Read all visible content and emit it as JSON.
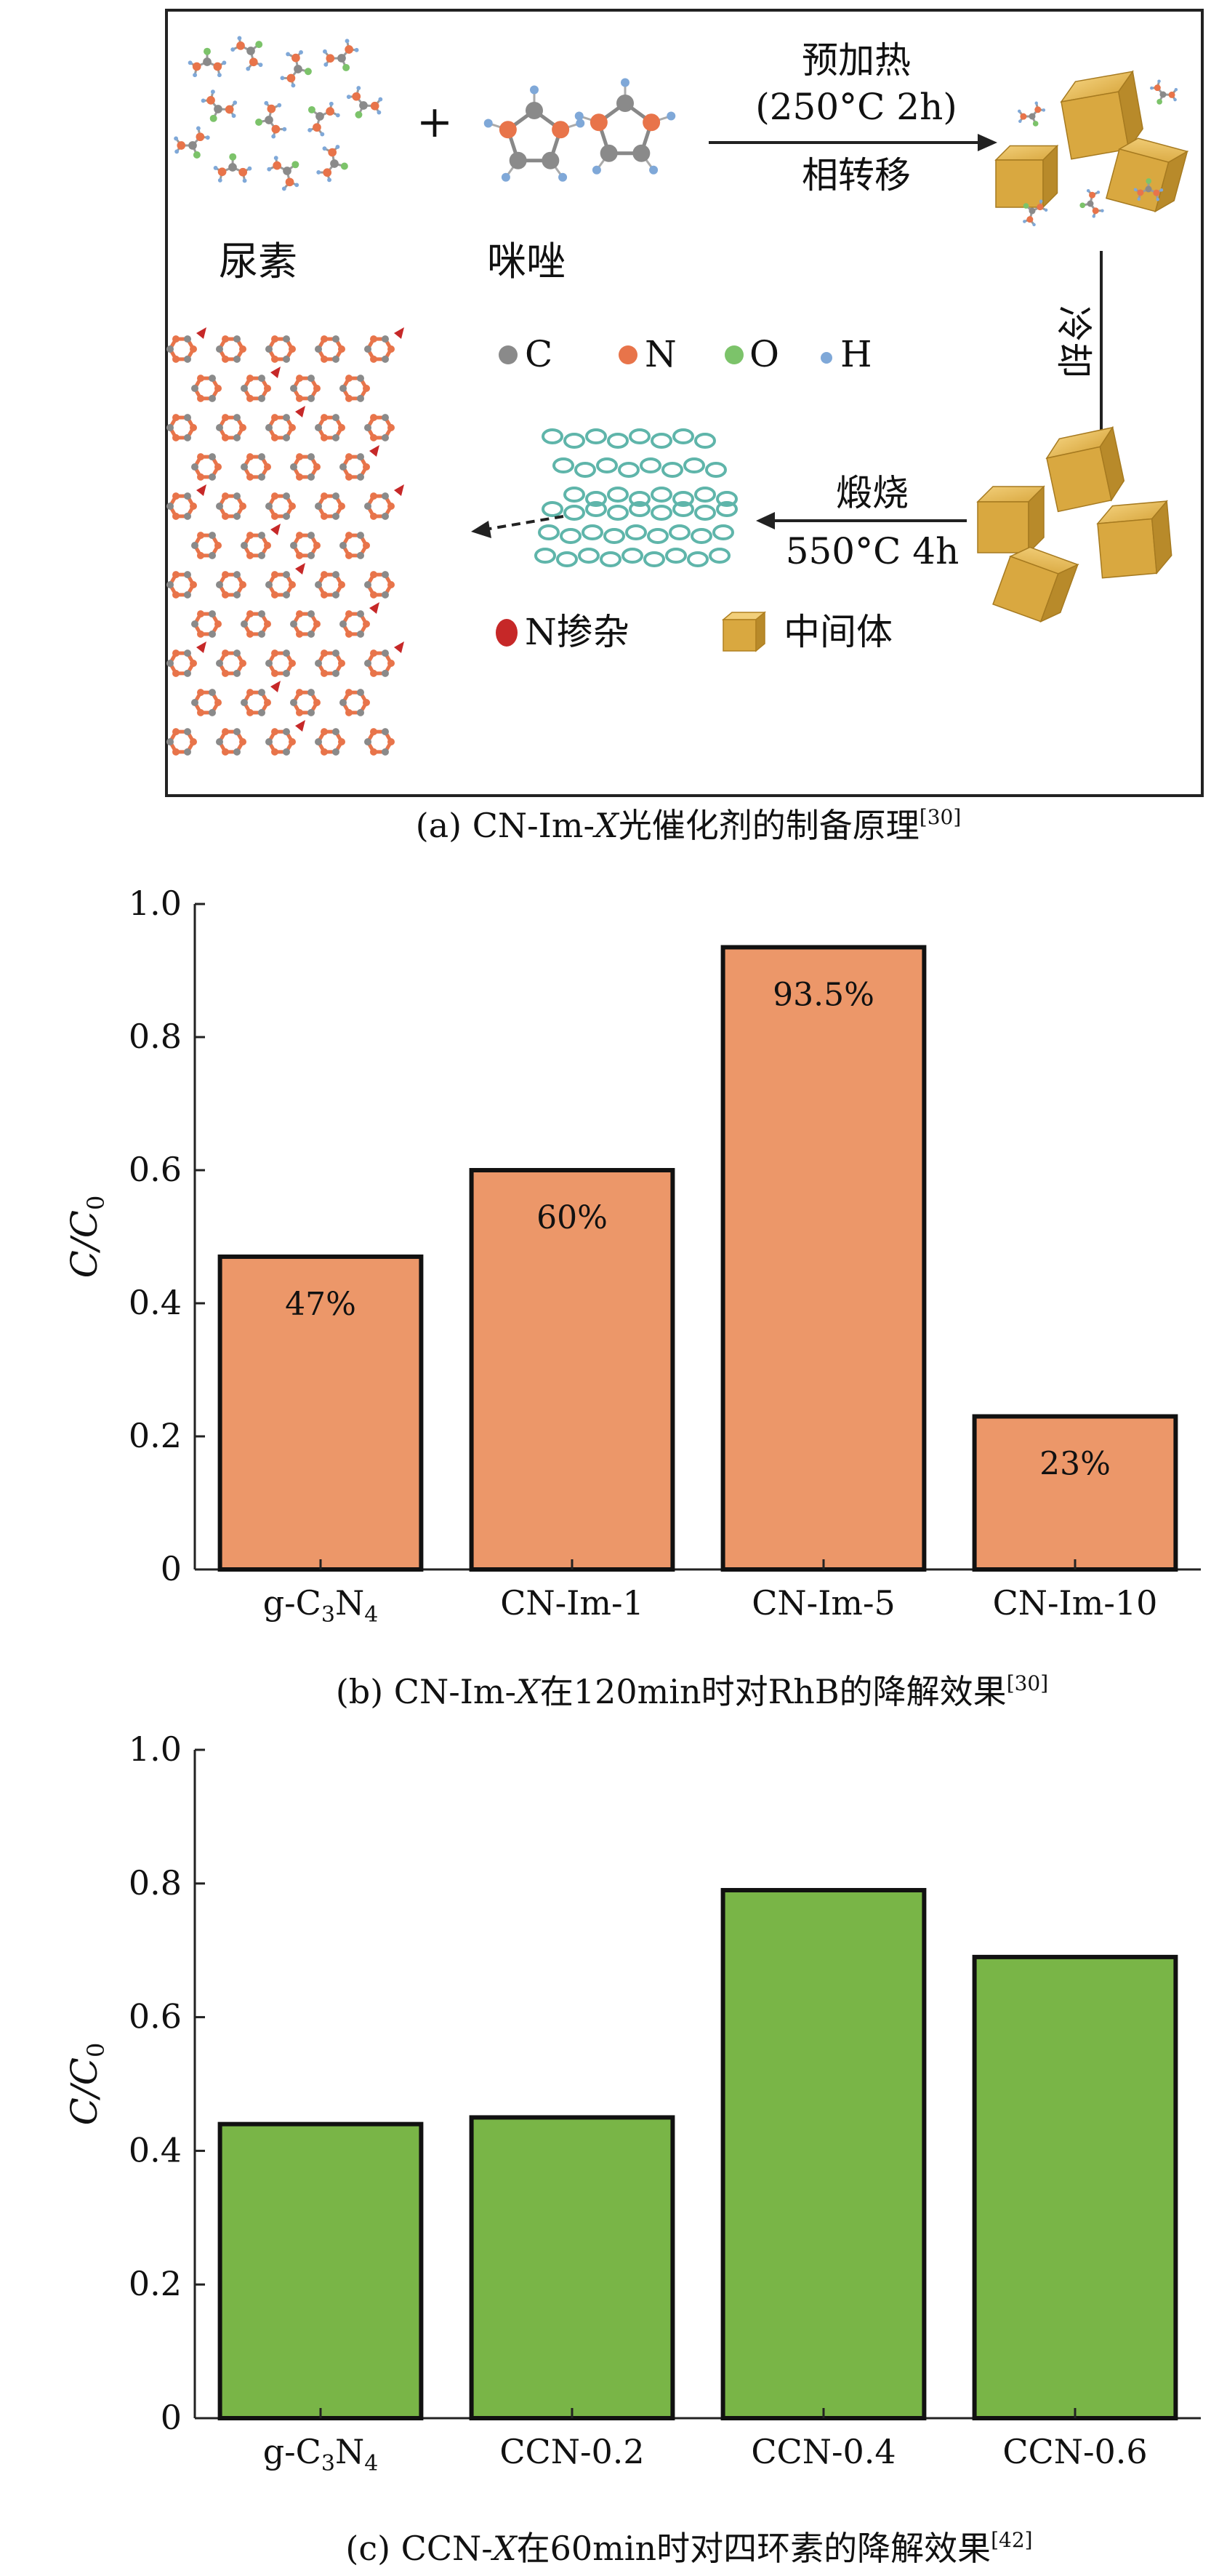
{
  "panel_a": {
    "caption": "(a) CN-Im-X光催化剂的制备原理[30]",
    "caption_prefix": "(a) CN-Im-",
    "caption_x": "X",
    "caption_suffix": "光催化剂的制备原理",
    "caption_ref": "[30]",
    "urea": "尿素",
    "plus": "+",
    "imidazole": "咪唑",
    "step1_line1": "预加热",
    "step1_line2": "(250°C 2h)",
    "step1_line3": "相转移",
    "step2": "冷却",
    "step3_line1": "煅烧",
    "step3_line2": "550°C 4h",
    "legend": {
      "c": "C",
      "n": "N",
      "o": "O",
      "h": "H",
      "n_dope": "N掺杂",
      "intermediate": "中间体"
    },
    "colors": {
      "carbon": "#8a8a8a",
      "nitrogen": "#e8744a",
      "oxygen": "#7cc36a",
      "hydrogen": "#7fa8d8",
      "n_dope": "#c62828",
      "cube": "#d9a840",
      "sheet": "#8fd0c8"
    }
  },
  "chart_data": [
    {
      "type": "bar",
      "categories": [
        "g-C3N4",
        "CN-Im-1",
        "CN-Im-5",
        "CN-Im-10"
      ],
      "values": [
        0.47,
        0.6,
        0.935,
        0.23
      ],
      "data_labels": [
        "47%",
        "60%",
        "93.5%",
        "23%"
      ],
      "ylabel": "C/C0",
      "ylim": [
        0,
        1.0
      ],
      "yticks": [
        "0",
        "0.2",
        "0.4",
        "0.6",
        "0.8",
        "1.0"
      ],
      "bar_color": "#ec9769",
      "title": "(b) CN-Im-X在120min时对RhB的降解效果[30]"
    },
    {
      "type": "bar",
      "categories": [
        "g-C3N4",
        "CCN-0.2",
        "CCN-0.4",
        "CCN-0.6"
      ],
      "values": [
        0.44,
        0.45,
        0.79,
        0.69
      ],
      "ylabel": "C/C0",
      "ylim": [
        0,
        1.0
      ],
      "yticks": [
        "0",
        "0.2",
        "0.4",
        "0.6",
        "0.8",
        "1.0"
      ],
      "bar_color": "#79b547",
      "title": "(c) CCN-X在60min时对四环素的降解效果[42]"
    }
  ],
  "captions": {
    "b_prefix": "(b) CN-Im-",
    "b_x": "X",
    "b_suffix": "在120min时对RhB的降解效果",
    "b_ref": "[30]",
    "c_prefix": "(c) CCN-",
    "c_x": "X",
    "c_suffix": "在60min时对四环素的降解效果",
    "c_ref": "[42]"
  }
}
